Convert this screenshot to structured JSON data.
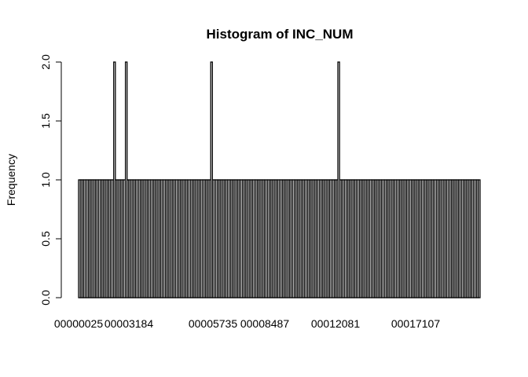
{
  "chart_data": {
    "type": "bar",
    "title": "Histogram of INC_NUM",
    "xlabel": "",
    "ylabel": "Frequency",
    "ylim": [
      0,
      2
    ],
    "y_ticks": [
      "0.0",
      "0.5",
      "1.0",
      "1.5",
      "2.0"
    ],
    "x_tick_labels": [
      "00000025",
      "00003184",
      "00005735",
      "00008487",
      "00012081",
      "00017107"
    ],
    "bar_count": 240,
    "base_frequency": 1,
    "peaks": [
      {
        "index": 21,
        "value": 2
      },
      {
        "index": 28,
        "value": 2
      },
      {
        "index": 79,
        "value": 2
      },
      {
        "index": 155,
        "value": 2
      }
    ],
    "grid": false,
    "legend": "none"
  }
}
